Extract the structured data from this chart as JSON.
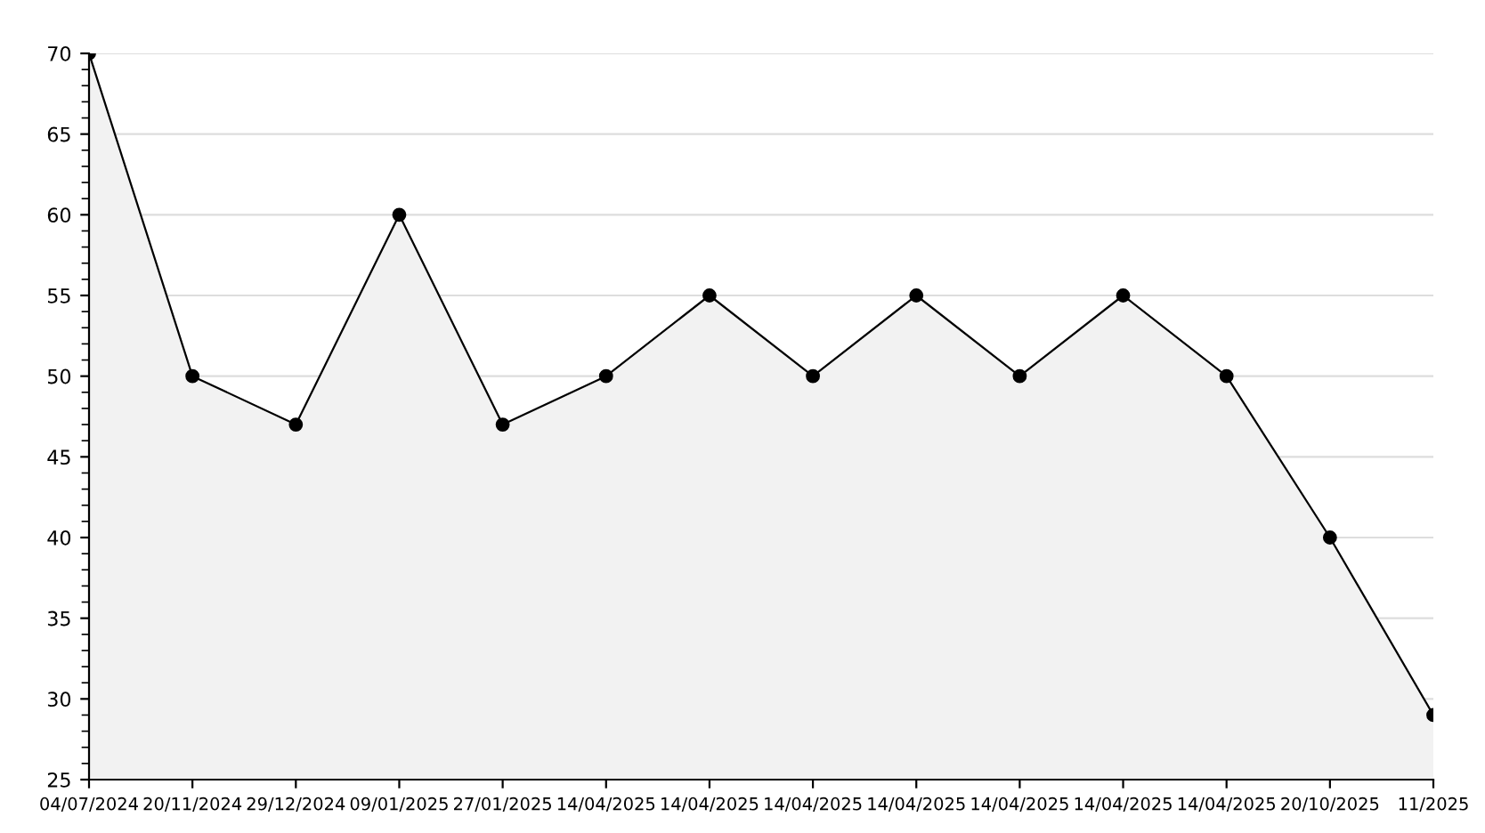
{
  "chart_data": {
    "type": "area",
    "categories": [
      "04/07/2024",
      "20/11/2024",
      "29/12/2024",
      "09/01/2025",
      "27/01/2025",
      "14/04/2025",
      "14/04/2025",
      "14/04/2025",
      "14/04/2025",
      "14/04/2025",
      "14/04/2025",
      "14/04/2025",
      "20/10/2025",
      "11/2025"
    ],
    "series": [
      {
        "color": "#000000",
        "values": [
          70,
          50,
          47,
          60,
          47,
          50,
          55,
          50,
          55,
          50,
          55,
          50,
          40,
          29
        ]
      }
    ],
    "ylim": [
      25,
      70
    ],
    "yticks": [
      25,
      30,
      35,
      40,
      45,
      50,
      55,
      60,
      65,
      70
    ],
    "grid": "y",
    "marker": "circle",
    "line_style": "solid",
    "legend": false
  }
}
